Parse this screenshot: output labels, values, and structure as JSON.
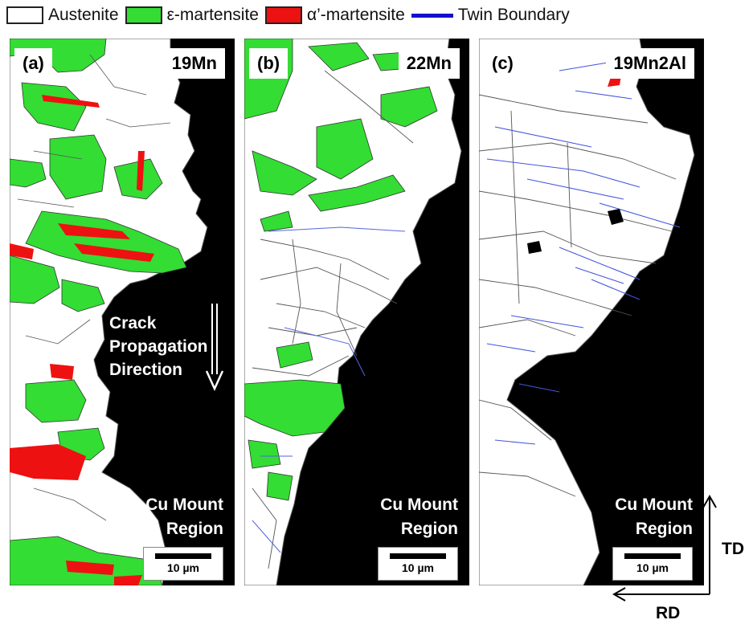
{
  "legend": [
    {
      "label": "Austenite",
      "kind": "box",
      "color": "#ffffff"
    },
    {
      "label": "ε-martensite",
      "kind": "box",
      "color": "#33dd33"
    },
    {
      "label": "α’-martensite",
      "kind": "box",
      "color": "#ee1111"
    },
    {
      "label": "Twin Boundary",
      "kind": "line",
      "color": "#1010cc"
    }
  ],
  "panels": [
    {
      "label": "(a)",
      "alloy": "19Mn",
      "region": "Cu Mount Region",
      "scale": "10 µm",
      "crack": "Crack Propagation Direction"
    },
    {
      "label": "(b)",
      "alloy": "22Mn",
      "region": "Cu Mount Region",
      "scale": "10 µm"
    },
    {
      "label": "(c)",
      "alloy": "19Mn2Al",
      "region": "Cu Mount Region",
      "scale": "10 µm"
    }
  ],
  "axes": {
    "td": "TD",
    "rd": "RD"
  },
  "colors": {
    "austenite": "#ffffff",
    "epsilon": "#33dd33",
    "alpha": "#ee1111",
    "twin": "#1010cc",
    "mount": "#000000",
    "grain_boundary": "#444444"
  }
}
